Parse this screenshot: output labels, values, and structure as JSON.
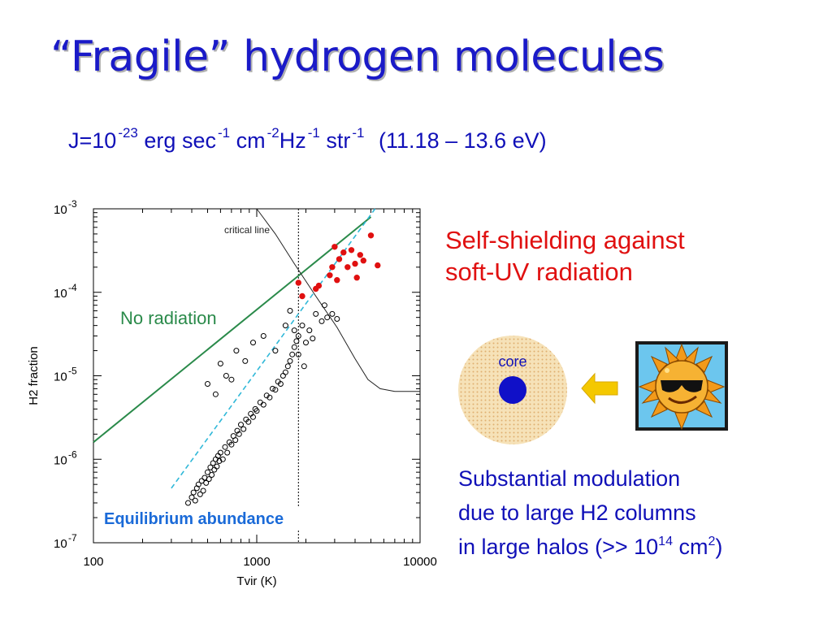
{
  "slide": {
    "title": "“Fragile” hydrogen molecules",
    "flux": {
      "j_base": "J=10",
      "j_exp": "-23",
      "erg": "erg",
      "sec": "sec",
      "sec_exp": "-1",
      "cm": "cm",
      "cm_exp": "-2",
      "hz": "Hz",
      "hz_exp": "-1",
      "str": "str",
      "str_exp": "-1",
      "energy_range": "(11.18 – 13.6 eV)"
    },
    "self_shielding": {
      "line1": "Self-shielding against",
      "line2": "soft-UV radiation"
    },
    "modulation": {
      "line1": "Substantial modulation",
      "line2": "due to large H2 columns",
      "line3_pre": "in large halos (>> 10",
      "line3_exp": "14",
      "line3_unit": " cm",
      "line3_unit_exp": "2",
      "line3_post": ")"
    },
    "core_label": "core",
    "colors": {
      "title": "#1a1ac8",
      "text_blue": "#1010b8",
      "text_red": "#e01010",
      "no_radiation_line": "#2a8a4a",
      "equilibrium_line": "#30b8d8",
      "red_points": "#e01010",
      "halo_fill": "#f2d9a8",
      "core_fill": "#1010c8",
      "arrow": "#f4c800"
    },
    "icons": [
      "sun-with-sunglasses-icon",
      "arrow-left-icon",
      "halo-core-icon"
    ]
  },
  "chart_data": {
    "type": "scatter",
    "xlabel": "Tvir (K)",
    "ylabel": "H2 fraction",
    "x_scale": "log",
    "y_scale": "log",
    "xlim": [
      100,
      10000
    ],
    "ylim": [
      1e-07,
      0.001
    ],
    "x_ticks": [
      {
        "value": 100,
        "label": "100"
      },
      {
        "value": 1000,
        "label": "1000"
      },
      {
        "value": 10000,
        "label": "10000"
      }
    ],
    "y_ticks": [
      {
        "value": 1e-07,
        "base": "10",
        "exp": "-7"
      },
      {
        "value": 1e-06,
        "base": "10",
        "exp": "-6"
      },
      {
        "value": 1e-05,
        "base": "10",
        "exp": "-5"
      },
      {
        "value": 0.0001,
        "base": "10",
        "exp": "-4"
      },
      {
        "value": 0.001,
        "base": "10",
        "exp": "-3"
      }
    ],
    "annotations": {
      "critical_line": "critical line",
      "no_radiation": "No radiation",
      "equilibrium": "Equilibrium abundance"
    },
    "vertical_marker_x": 1800,
    "lines": [
      {
        "label": "No radiation",
        "color": "#2a8a4a",
        "style": "solid",
        "points": [
          [
            100,
            1.6e-06
          ],
          [
            5000,
            0.0008
          ]
        ]
      },
      {
        "label": "Equilibrium abundance",
        "color": "#30b8d8",
        "style": "dashed",
        "points": [
          [
            300,
            4.5e-07
          ],
          [
            5300,
            0.001
          ]
        ]
      },
      {
        "label": "critical line",
        "color": "#222222",
        "style": "solid",
        "points": [
          [
            1000,
            0.001
          ],
          [
            1300,
            0.0005
          ],
          [
            1700,
            0.00022
          ],
          [
            2300,
            9e-05
          ],
          [
            3100,
            3.8e-05
          ],
          [
            4000,
            1.6e-05
          ],
          [
            4800,
            9e-06
          ],
          [
            5700,
            7e-06
          ],
          [
            7000,
            6.5e-06
          ],
          [
            10000,
            6.5e-06
          ]
        ]
      }
    ],
    "series": [
      {
        "name": "halos",
        "style": "open-circle",
        "color": "#000000",
        "points": [
          [
            400,
            3.5e-07
          ],
          [
            410,
            4e-07
          ],
          [
            420,
            3.2e-07
          ],
          [
            430,
            4.5e-07
          ],
          [
            440,
            5e-07
          ],
          [
            450,
            3.8e-07
          ],
          [
            460,
            5.5e-07
          ],
          [
            470,
            4.2e-07
          ],
          [
            480,
            6e-07
          ],
          [
            490,
            5.2e-07
          ],
          [
            500,
            7e-07
          ],
          [
            510,
            5.8e-07
          ],
          [
            520,
            8e-07
          ],
          [
            530,
            6.5e-07
          ],
          [
            540,
            9e-07
          ],
          [
            550,
            7.5e-07
          ],
          [
            560,
            1e-06
          ],
          [
            570,
            8.2e-07
          ],
          [
            580,
            1.1e-06
          ],
          [
            590,
            9.5e-07
          ],
          [
            600,
            1.2e-06
          ],
          [
            620,
            1e-06
          ],
          [
            640,
            1.4e-06
          ],
          [
            660,
            1.2e-06
          ],
          [
            680,
            1.6e-06
          ],
          [
            700,
            1.5e-06
          ],
          [
            720,
            1.9e-06
          ],
          [
            740,
            1.7e-06
          ],
          [
            760,
            2.2e-06
          ],
          [
            780,
            2e-06
          ],
          [
            800,
            2.6e-06
          ],
          [
            830,
            2.3e-06
          ],
          [
            860,
            3e-06
          ],
          [
            890,
            2.8e-06
          ],
          [
            920,
            3.5e-06
          ],
          [
            950,
            3.2e-06
          ],
          [
            980,
            4e-06
          ],
          [
            1000,
            3.8e-06
          ],
          [
            1050,
            4.8e-06
          ],
          [
            1100,
            4.5e-06
          ],
          [
            1150,
            5.8e-06
          ],
          [
            1200,
            5.5e-06
          ],
          [
            1250,
            7e-06
          ],
          [
            1300,
            6.8e-06
          ],
          [
            1350,
            8.5e-06
          ],
          [
            1400,
            8e-06
          ],
          [
            1450,
            1e-05
          ],
          [
            1500,
            1.1e-05
          ],
          [
            1550,
            1.3e-05
          ],
          [
            1600,
            1.5e-05
          ],
          [
            1650,
            1.8e-05
          ],
          [
            1700,
            2.2e-05
          ],
          [
            1750,
            2.6e-05
          ],
          [
            1800,
            3e-05
          ],
          [
            1900,
            4e-05
          ],
          [
            2000,
            2.5e-05
          ],
          [
            2100,
            3.5e-05
          ],
          [
            2300,
            5.5e-05
          ],
          [
            2500,
            4.5e-05
          ],
          [
            2700,
            5e-05
          ],
          [
            500,
            8e-06
          ],
          [
            560,
            6e-06
          ],
          [
            600,
            1.4e-05
          ],
          [
            650,
            1e-05
          ],
          [
            700,
            9e-06
          ],
          [
            750,
            2e-05
          ],
          [
            850,
            1.5e-05
          ],
          [
            950,
            2.5e-05
          ],
          [
            1100,
            3e-05
          ],
          [
            1300,
            2e-05
          ],
          [
            1500,
            4e-05
          ],
          [
            1600,
            6e-05
          ],
          [
            1700,
            3.5e-05
          ],
          [
            1800,
            1.8e-05
          ],
          [
            1950,
            1.3e-05
          ],
          [
            2200,
            2.8e-05
          ],
          [
            2600,
            7e-05
          ],
          [
            2900,
            5.5e-05
          ],
          [
            3100,
            4.8e-05
          ],
          [
            380,
            3e-07
          ]
        ]
      },
      {
        "name": "self-shielded",
        "style": "filled-circle",
        "color": "#e01010",
        "points": [
          [
            1800,
            0.00013
          ],
          [
            1900,
            9e-05
          ],
          [
            2300,
            0.00011
          ],
          [
            2400,
            0.00012
          ],
          [
            2800,
            0.00016
          ],
          [
            2900,
            0.0002
          ],
          [
            3000,
            0.00035
          ],
          [
            3100,
            0.00014
          ],
          [
            3200,
            0.00025
          ],
          [
            3400,
            0.0003
          ],
          [
            3600,
            0.0002
          ],
          [
            3800,
            0.00032
          ],
          [
            4000,
            0.00022
          ],
          [
            4100,
            0.00015
          ],
          [
            4300,
            0.00028
          ],
          [
            4500,
            0.00024
          ],
          [
            5000,
            0.00048
          ],
          [
            5500,
            0.00021
          ]
        ]
      }
    ],
    "grid": false
  }
}
